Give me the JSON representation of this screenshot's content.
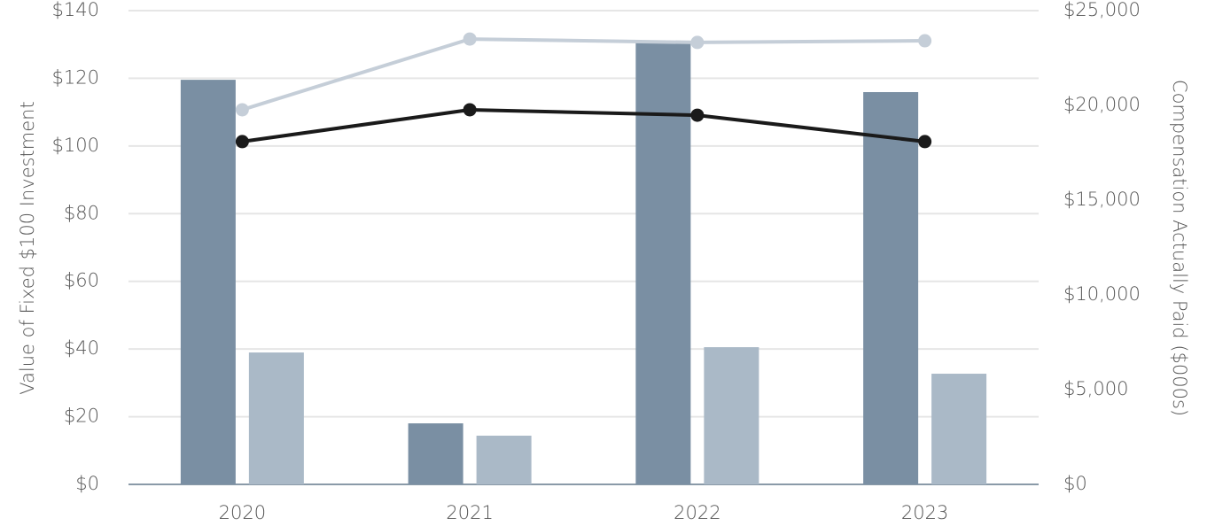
{
  "chart_data": {
    "type": "bar",
    "categories": [
      "2020",
      "2021",
      "2022",
      "2023"
    ],
    "y_label": "Value of Fixed $100 Investment",
    "y2_label": "Compensation Actually Paid ($000s)",
    "ylim": [
      0,
      140
    ],
    "yticks": [
      {
        "value": 0,
        "label": "$0"
      },
      {
        "value": 20,
        "label": "$20"
      },
      {
        "value": 40,
        "label": "$40"
      },
      {
        "value": 60,
        "label": "$60"
      },
      {
        "value": 80,
        "label": "$80"
      },
      {
        "value": 100,
        "label": "$100"
      },
      {
        "value": 120,
        "label": "$120"
      },
      {
        "value": 140,
        "label": "$140"
      }
    ],
    "y2lim": [
      0,
      25000
    ],
    "y2ticks": [
      {
        "value": 0,
        "label": "$0"
      },
      {
        "value": 5000,
        "label": "$5,000"
      },
      {
        "value": 10000,
        "label": "$10,000"
      },
      {
        "value": 15000,
        "label": "$15,000"
      },
      {
        "value": 20000,
        "label": "$20,000"
      },
      {
        "value": 25000,
        "label": "$25,000"
      }
    ],
    "grid": true,
    "series": [
      {
        "type": "bar",
        "axis": "y2",
        "color": "#7a8fa3",
        "values": [
          21350,
          3220,
          23360,
          20700
        ]
      },
      {
        "type": "bar",
        "axis": "y2",
        "color": "#aab9c7",
        "values": [
          6960,
          2570,
          7240,
          5840
        ]
      },
      {
        "type": "line",
        "axis": "y",
        "color": "#c5ced8",
        "values": [
          110.7,
          131.6,
          130.6,
          131.1
        ]
      },
      {
        "type": "line",
        "axis": "y",
        "color": "#1a1a1a",
        "values": [
          101.3,
          110.7,
          109.1,
          101.3
        ]
      }
    ]
  }
}
